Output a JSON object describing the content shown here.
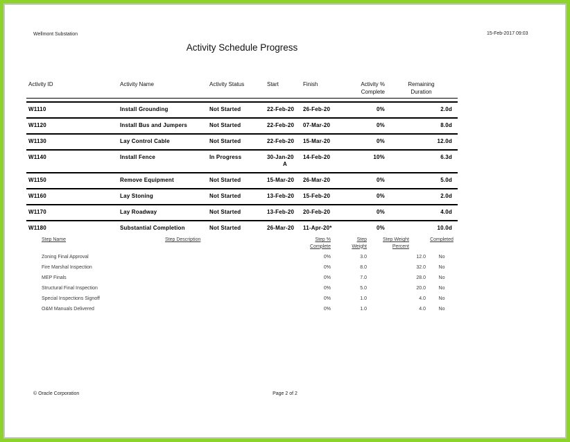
{
  "frame": {
    "border_color": "#8dd32b",
    "inner_border_color": "#c3c7be",
    "page_color": "#ffffff"
  },
  "header": {
    "project": "Wellmont Substation",
    "datetime": "15-Feb-2017 09:03",
    "title": "Activity Schedule Progress"
  },
  "table": {
    "columns": [
      "Activity ID",
      "Activity Name",
      "Activity Status",
      "Start",
      "Finish",
      "Activity %\nComplete",
      "Remaining\nDuration"
    ],
    "rows": [
      {
        "id": "W1110",
        "name": "Install Grounding",
        "status": "Not Started",
        "start": "22-Feb-20",
        "finish": "26-Feb-20",
        "pct": "0%",
        "remaining": "2.0d"
      },
      {
        "id": "W1120",
        "name": "Install Bus and Jumpers",
        "status": "Not Started",
        "start": "22-Feb-20",
        "finish": "07-Mar-20",
        "pct": "0%",
        "remaining": "8.0d"
      },
      {
        "id": "W1130",
        "name": "Lay Control Cable",
        "status": "Not Started",
        "start": "22-Feb-20",
        "finish": "15-Mar-20",
        "pct": "0%",
        "remaining": "12.0d"
      },
      {
        "id": "W1140",
        "name": "Install Fence",
        "status": "In Progress",
        "start": "30-Jan-20",
        "start_suffix": "A",
        "finish": "14-Feb-20",
        "pct": "10%",
        "remaining": "6.3d"
      },
      {
        "id": "W1150",
        "name": "Remove Equipment",
        "status": "Not Started",
        "start": "15-Mar-20",
        "finish": "26-Mar-20",
        "pct": "0%",
        "remaining": "5.0d"
      },
      {
        "id": "W1160",
        "name": "Lay Stoning",
        "status": "Not Started",
        "start": "13-Feb-20",
        "finish": "15-Feb-20",
        "pct": "0%",
        "remaining": "2.0d"
      },
      {
        "id": "W1170",
        "name": "Lay Roadway",
        "status": "Not Started",
        "start": "13-Feb-20",
        "finish": "20-Feb-20",
        "pct": "0%",
        "remaining": "4.0d"
      },
      {
        "id": "W1180",
        "name": "Substantial Completion",
        "status": "Not Started",
        "start": "26-Mar-20",
        "finish": "11-Apr-20*",
        "pct": "0%",
        "remaining": "10.0d",
        "steps": {
          "columns": [
            "Step Name",
            "Step Description",
            "Step %\nComplete",
            "Step\nWeight",
            "Step Weight\nPercent",
            "Completed"
          ],
          "rows": [
            {
              "name": "Zoning Final Approval",
              "description": "",
              "pct": "0%",
              "weight": "3.0",
              "weight_pct": "12.0",
              "completed": "No"
            },
            {
              "name": "Fire Marshal Inspection",
              "description": "",
              "pct": "0%",
              "weight": "8.0",
              "weight_pct": "32.0",
              "completed": "No"
            },
            {
              "name": "MEP Finals",
              "description": "",
              "pct": "0%",
              "weight": "7.0",
              "weight_pct": "28.0",
              "completed": "No"
            },
            {
              "name": "Structural Final Inspection",
              "description": "",
              "pct": "0%",
              "weight": "5.0",
              "weight_pct": "20.0",
              "completed": "No"
            },
            {
              "name": "Special Inspections Signoff",
              "description": "",
              "pct": "0%",
              "weight": "1.0",
              "weight_pct": "4.0",
              "completed": "No"
            },
            {
              "name": "O&M Manuals Delivered",
              "description": "",
              "pct": "0%",
              "weight": "1.0",
              "weight_pct": "4.0",
              "completed": "No"
            }
          ]
        }
      }
    ]
  },
  "footer": {
    "copyright": "© Oracle Corporation",
    "page": "Page 2 of 2"
  }
}
